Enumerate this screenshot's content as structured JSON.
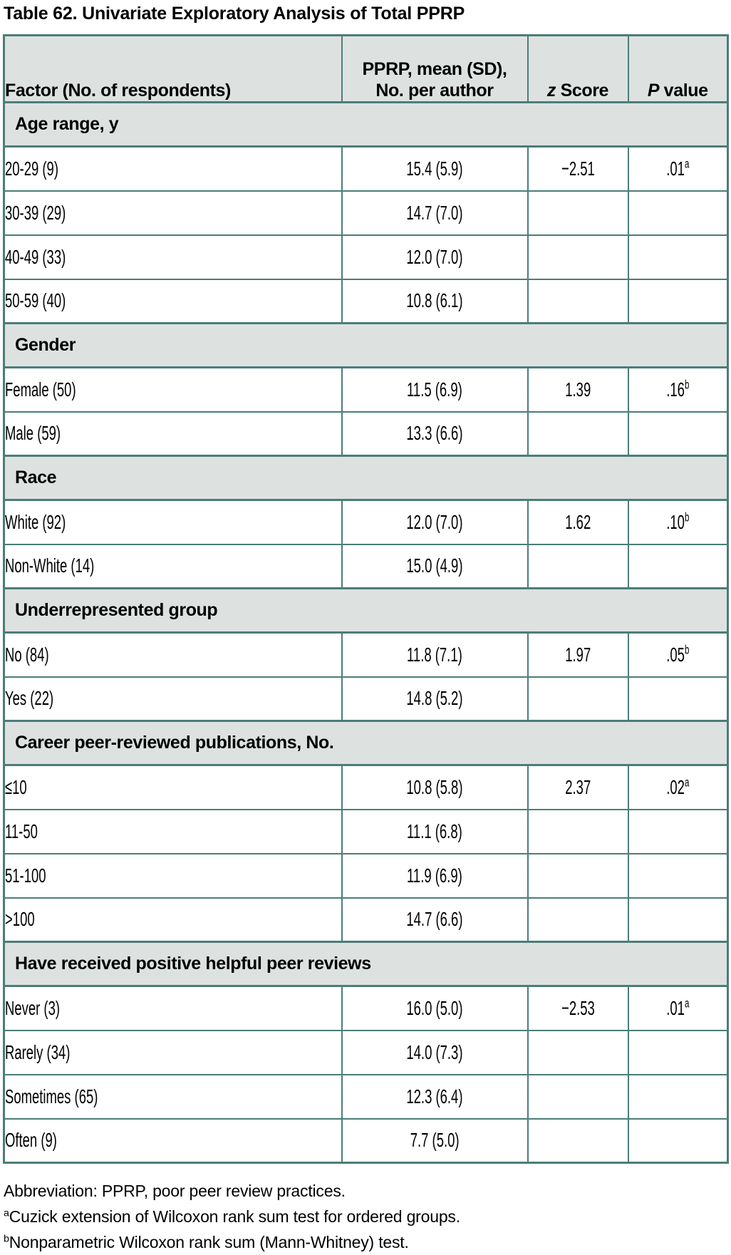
{
  "title": "Table 62. Univariate Exploratory Analysis of Total PPRP",
  "table": {
    "header": {
      "factor": "Factor (No. of respondents)",
      "pprp_line1": "PPRP, mean (SD),",
      "pprp_line2": "No. per author",
      "z_italic": "z",
      "z_rest": " Score",
      "p_italic": "P",
      "p_rest": " value"
    },
    "sections": [
      {
        "label": "Age range, y",
        "rows": [
          {
            "factor": "20-29 (9)",
            "mean_sd": "15.4 (5.9)",
            "z_score": "−2.51",
            "p_value": ".01",
            "p_sup": "a"
          },
          {
            "factor": "30-39 (29)",
            "mean_sd": "14.7 (7.0)",
            "z_score": "",
            "p_value": "",
            "p_sup": ""
          },
          {
            "factor": "40-49 (33)",
            "mean_sd": "12.0 (7.0)",
            "z_score": "",
            "p_value": "",
            "p_sup": ""
          },
          {
            "factor": "50-59 (40)",
            "mean_sd": "10.8 (6.1)",
            "z_score": "",
            "p_value": "",
            "p_sup": ""
          }
        ]
      },
      {
        "label": "Gender",
        "rows": [
          {
            "factor": "Female (50)",
            "mean_sd": "11.5 (6.9)",
            "z_score": "1.39",
            "p_value": ".16",
            "p_sup": "b"
          },
          {
            "factor": "Male (59)",
            "mean_sd": "13.3 (6.6)",
            "z_score": "",
            "p_value": "",
            "p_sup": ""
          }
        ]
      },
      {
        "label": "Race",
        "rows": [
          {
            "factor": "White (92)",
            "mean_sd": "12.0 (7.0)",
            "z_score": "1.62",
            "p_value": ".10",
            "p_sup": "b"
          },
          {
            "factor": "Non-White (14)",
            "mean_sd": "15.0 (4.9)",
            "z_score": "",
            "p_value": "",
            "p_sup": ""
          }
        ]
      },
      {
        "label": "Underrepresented group",
        "rows": [
          {
            "factor": "No (84)",
            "mean_sd": "11.8 (7.1)",
            "z_score": "1.97",
            "p_value": ".05",
            "p_sup": "b"
          },
          {
            "factor": "Yes (22)",
            "mean_sd": "14.8 (5.2)",
            "z_score": "",
            "p_value": "",
            "p_sup": ""
          }
        ]
      },
      {
        "label": "Career peer-reviewed publications, No.",
        "rows": [
          {
            "factor": "≤10",
            "mean_sd": "10.8 (5.8)",
            "z_score": "2.37",
            "p_value": ".02",
            "p_sup": "a"
          },
          {
            "factor": "11-50",
            "mean_sd": "11.1 (6.8)",
            "z_score": "",
            "p_value": "",
            "p_sup": ""
          },
          {
            "factor": "51-100",
            "mean_sd": "11.9 (6.9)",
            "z_score": "",
            "p_value": "",
            "p_sup": ""
          },
          {
            "factor": ">100",
            "mean_sd": "14.7 (6.6)",
            "z_score": "",
            "p_value": "",
            "p_sup": ""
          }
        ]
      },
      {
        "label": "Have received positive helpful peer reviews",
        "rows": [
          {
            "factor": "Never (3)",
            "mean_sd": "16.0 (5.0)",
            "z_score": "−2.53",
            "p_value": ".01",
            "p_sup": "a"
          },
          {
            "factor": "Rarely (34)",
            "mean_sd": "14.0 (7.3)",
            "z_score": "",
            "p_value": "",
            "p_sup": ""
          },
          {
            "factor": "Sometimes (65)",
            "mean_sd": "12.3 (6.4)",
            "z_score": "",
            "p_value": "",
            "p_sup": ""
          },
          {
            "factor": "Often (9)",
            "mean_sd": "7.7 (5.0)",
            "z_score": "",
            "p_value": "",
            "p_sup": ""
          }
        ]
      }
    ]
  },
  "footnotes": {
    "abbreviation": "Abbreviation: PPRP, poor peer review practices.",
    "a_marker": "a",
    "a_text": "Cuzick extension of Wilcoxon rank sum test for ordered groups.",
    "b_marker": "b",
    "b_text": "Nonparametric Wilcoxon rank sum (Mann-Whitney) test."
  },
  "colors": {
    "border": "#4b7d79",
    "shaded_background": "#dde2e0",
    "row_background": "#ffffff",
    "text": "#000000"
  }
}
